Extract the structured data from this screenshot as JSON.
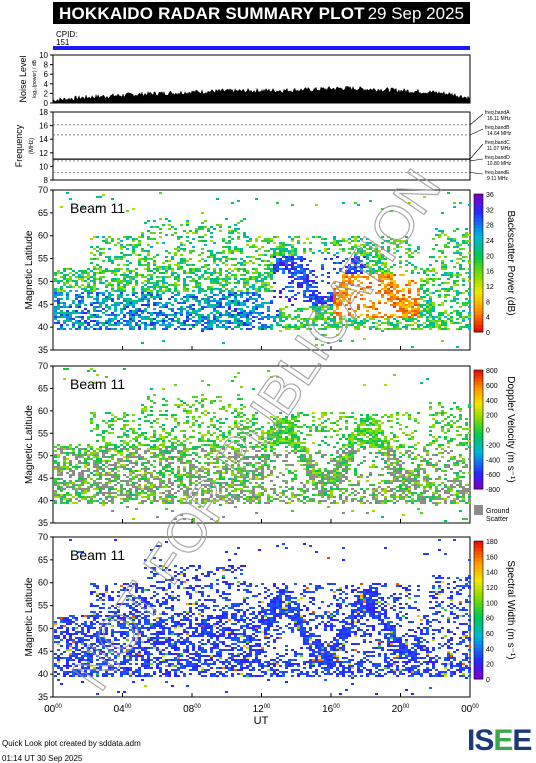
{
  "header": {
    "title": "HOKKAIDO RADAR SUMMARY PLOT",
    "date": "29 Sep 2025"
  },
  "cpid": {
    "label": "CPID:",
    "value": "151"
  },
  "colors": {
    "cpid_bar": "#1a1aff",
    "ground_scatter": "#8c8c8c",
    "watermark": "#999999",
    "isee_dark": "#1a3a7a",
    "isee_green": "#3aa64a"
  },
  "watermark": "NOT FOR PUBLICATION",
  "footer": {
    "line1": "Quick Look plot created by sddata.adm",
    "line2": "01:14 UT 30 Sep 2025",
    "logo": "ISEE"
  },
  "chart_data": [
    {
      "type": "area",
      "id": "noise",
      "ylabel": "Noise Level",
      "ylabel_sub": "log₁₀(power) / dB",
      "yticks": [
        "0",
        "2",
        "4",
        "6",
        "8",
        "10"
      ],
      "ylim": [
        0,
        10
      ],
      "x_hours": [
        0,
        1,
        2,
        3,
        4,
        5,
        6,
        7,
        8,
        9,
        10,
        11,
        12,
        13,
        14,
        15,
        16,
        17,
        18,
        19,
        20,
        21,
        22,
        23,
        24
      ],
      "values": [
        0.6,
        0.9,
        1.2,
        1.4,
        1.6,
        1.8,
        2.0,
        2.1,
        2.3,
        2.4,
        2.5,
        2.5,
        2.6,
        2.6,
        2.7,
        2.8,
        3.0,
        3.1,
        2.9,
        2.8,
        2.6,
        2.4,
        2.2,
        1.8,
        1.0
      ]
    },
    {
      "type": "line",
      "id": "frequency",
      "ylabel": "Frequency",
      "ylabel_sub": "(MHz)",
      "yticks": [
        "8",
        "10",
        "12",
        "14",
        "16",
        "18"
      ],
      "ylim": [
        8,
        18
      ],
      "bands": [
        {
          "name": "freq.bandA",
          "value": "16.11 MHz",
          "freq": 16.11
        },
        {
          "name": "freq.bandB",
          "value": "14.64 MHz",
          "freq": 14.64
        },
        {
          "name": "freq.bandC",
          "value": "11.07 MHz",
          "freq": 11.07
        },
        {
          "name": "freq.bandD",
          "value": "10.80 MHz",
          "freq": 10.8
        },
        {
          "name": "freq.bandE",
          "value": "9.11 MHz",
          "freq": 9.11
        }
      ],
      "operating_freq": 11.07
    },
    {
      "type": "heatmap",
      "id": "power",
      "beam": "Beam 11",
      "ylabel": "Magnetic Latitude",
      "yticks": [
        "35",
        "40",
        "45",
        "50",
        "55",
        "60",
        "65",
        "70"
      ],
      "ylim": [
        35,
        70
      ],
      "colorbar": {
        "label": "Backscatter Power (dB)",
        "ticks": [
          "0",
          "4",
          "8",
          "12",
          "16",
          "20",
          "24",
          "28",
          "32",
          "36"
        ],
        "range": [
          0,
          36
        ]
      }
    },
    {
      "type": "heatmap",
      "id": "velocity",
      "beam": "Beam 11",
      "ylabel": "Magnetic Latitude",
      "yticks": [
        "35",
        "40",
        "45",
        "50",
        "55",
        "60",
        "65",
        "70"
      ],
      "ylim": [
        35,
        70
      ],
      "colorbar": {
        "label": "Doppler Velocity (m s⁻¹)",
        "ticks": [
          "-800",
          "-600",
          "-400",
          "-200",
          "0",
          "200",
          "400",
          "600",
          "800"
        ],
        "range": [
          -800,
          800
        ]
      },
      "ground_label": [
        "Ground",
        "Scatter"
      ]
    },
    {
      "type": "heatmap",
      "id": "width",
      "beam": "Beam 11",
      "ylabel": "Magnetic Latitude",
      "yticks": [
        "35",
        "40",
        "45",
        "50",
        "55",
        "60",
        "65",
        "70"
      ],
      "ylim": [
        35,
        70
      ],
      "colorbar": {
        "label": "Spectral Width (m s⁻¹)",
        "ticks": [
          "0",
          "20",
          "40",
          "60",
          "80",
          "100",
          "120",
          "140",
          "160",
          "180"
        ],
        "range": [
          0,
          180
        ]
      }
    }
  ],
  "xaxis": {
    "label": "UT",
    "ticks": [
      {
        "h": "00",
        "m": "00"
      },
      {
        "h": "04",
        "m": "00"
      },
      {
        "h": "08",
        "m": "00"
      },
      {
        "h": "12",
        "m": "00"
      },
      {
        "h": "16",
        "m": "00"
      },
      {
        "h": "20",
        "m": "00"
      },
      {
        "h": "00",
        "m": "00"
      }
    ]
  }
}
